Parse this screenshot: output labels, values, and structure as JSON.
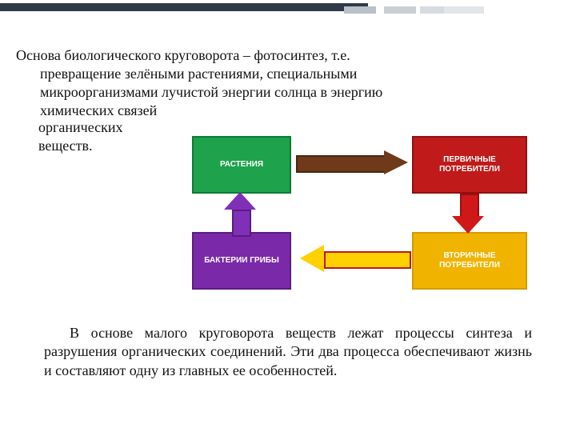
{
  "topbar": {
    "main_color": "#2e3a47",
    "seg_colors": [
      "#b8c0c8",
      "#c9cfd5",
      "#d7dce0",
      "#e3e6e9"
    ]
  },
  "intro": {
    "line1": "Основа биологического круговорота – фотосинтез, т.е.",
    "line2": "превращение зелёными растениями, специальными",
    "line3": "микроорганизмами лучистой энергии солнца в энергию",
    "line4": "химических связей",
    "tail1": "органических",
    "tail2": "веществ.",
    "fontsize": 18,
    "color": "#111111"
  },
  "diagram": {
    "type": "flowchart",
    "background": "#ffffff",
    "label_fontsize": 10,
    "label_color": "#ffffff",
    "nodes": {
      "plants": {
        "label": "РАСТЕНИЯ",
        "fill": "#1ea24b",
        "border": "#0f7a35"
      },
      "primary": {
        "label": "ПЕРВИЧНЫЕ ПОТРЕБИТЕЛИ",
        "fill": "#c01a1a",
        "border": "#8f1010"
      },
      "bacteria": {
        "label": "БАКТЕРИИ ГРИБЫ",
        "fill": "#7a2aa8",
        "border": "#5a1c80"
      },
      "secondary": {
        "label": "ВТОРИЧНЫЕ ПОТРЕБИТЕЛИ",
        "fill": "#f0b400",
        "border": "#d49a00"
      }
    },
    "edges": {
      "plants_to_primary": {
        "fill": "#6e3a1a",
        "border": "#4a2410"
      },
      "primary_to_secondary": {
        "fill": "#d11818",
        "border": "#9a0e0e"
      },
      "secondary_to_bacteria": {
        "fill": "#ffd100",
        "border": "#c01a1a"
      },
      "bacteria_to_plants": {
        "fill": "#8030b8",
        "border": "#5a1c80"
      }
    }
  },
  "outro": {
    "text": "В основе малого круговорота веществ лежат процессы синтеза и разрушения органических соединений. Эти два процесса обеспечивают жизнь и составляют одну из главных ее особенностей.",
    "fontsize": 18,
    "color": "#111111"
  }
}
